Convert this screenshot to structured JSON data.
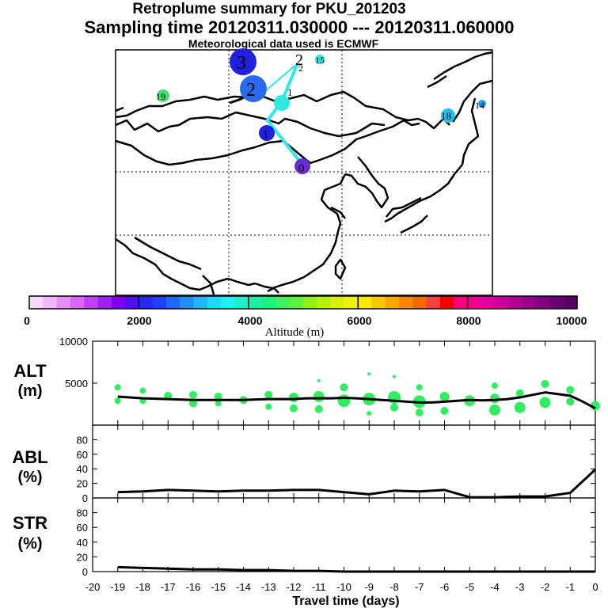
{
  "header": {
    "title": "Retroplume summary for PKU_201203",
    "sampling": "Sampling time   20120311.030000 --- 20120311.060000",
    "met": "Meteorological data used is ECMWF"
  },
  "colorbar": {
    "label": "Altitude (m)",
    "ticks": [
      "0",
      "2000",
      "4000",
      "6000",
      "8000",
      "10000"
    ],
    "colors": [
      "#f8d8f8",
      "#f0b8f8",
      "#e890f8",
      "#d868f8",
      "#c040f8",
      "#a020f0",
      "#8000f0",
      "#5010f0",
      "#2828f0",
      "#2040f8",
      "#2068f8",
      "#2090f8",
      "#20b8f8",
      "#20d8f8",
      "#20f0f0",
      "#20f0c8",
      "#20f0a0",
      "#20f080",
      "#40f060",
      "#60f040",
      "#90f020",
      "#b8f010",
      "#d8f010",
      "#f0f010",
      "#f8e800",
      "#f8c800",
      "#f8a800",
      "#f88800",
      "#f86800",
      "#f84040",
      "#f80000",
      "#f80080",
      "#f00090",
      "#e000a0",
      "#c80098",
      "#b00090",
      "#980088",
      "#800080",
      "#680070",
      "#580060"
    ]
  },
  "map": {
    "labels": [
      {
        "text": "0",
        "color": "#6a2cd0"
      },
      {
        "text": "1",
        "color": "#2020e0"
      },
      {
        "text": "1",
        "color": "#30e8e0"
      },
      {
        "text": "2",
        "color": "#2a6af0"
      },
      {
        "text": "2",
        "color": "#30e8e0"
      },
      {
        "text": "3",
        "color": "#2020e0"
      },
      {
        "text": "15",
        "color": "#30e8e0"
      },
      {
        "text": "18",
        "color": "#20c0f0"
      },
      {
        "text": "19",
        "color": "#40e070"
      },
      {
        "text": "14",
        "color": "#20a0f0"
      }
    ]
  },
  "axes": {
    "x_label": "Travel time (days)",
    "x_ticks": [
      "-20",
      "-19",
      "-18",
      "-17",
      "-16",
      "-15",
      "-14",
      "-13",
      "-12",
      "-11",
      "-10",
      "-9",
      "-8",
      "-7",
      "-6",
      "-5",
      "-4",
      "-3",
      "-2",
      "-1",
      "0"
    ]
  },
  "chart_data": [
    {
      "type": "line",
      "panel": "ALT",
      "ylabel": "ALT (m)",
      "ylim": [
        0,
        10000
      ],
      "yticks": [
        "10000",
        "5000"
      ],
      "x": [
        0,
        -0.5,
        -1,
        -1.5,
        -2,
        -2.5,
        -3,
        -3.5,
        -4,
        -4.5,
        -5,
        -5.5,
        -6,
        -6.5,
        -7,
        -7.5,
        -8,
        -8.5,
        -9,
        -9.5,
        -10,
        -10.5,
        -11,
        -11.5,
        -12,
        -12.5,
        -13,
        -13.5,
        -14,
        -15,
        -16,
        -17,
        -18,
        -19
      ],
      "series": [
        {
          "name": "mean altitude",
          "values": [
            2000,
            2800,
            3500,
            3700,
            3900,
            3600,
            3300,
            3100,
            3000,
            2950,
            3000,
            2900,
            2800,
            2700,
            2700,
            2800,
            2900,
            3000,
            3100,
            3200,
            3250,
            3200,
            3200,
            3200,
            3100,
            3100,
            3100,
            3050,
            3000,
            3000,
            3000,
            3100,
            3200,
            3400
          ]
        }
      ],
      "plume_points": [
        {
          "x": 0,
          "y": 2300,
          "r": 6
        },
        {
          "x": -1,
          "y": 2800,
          "r": 5
        },
        {
          "x": -1,
          "y": 4200,
          "r": 5
        },
        {
          "x": -2,
          "y": 2700,
          "r": 7
        },
        {
          "x": -2,
          "y": 4900,
          "r": 5
        },
        {
          "x": -3,
          "y": 2100,
          "r": 7
        },
        {
          "x": -3,
          "y": 3800,
          "r": 5
        },
        {
          "x": -4,
          "y": 1800,
          "r": 7
        },
        {
          "x": -4,
          "y": 3200,
          "r": 6
        },
        {
          "x": -4,
          "y": 4700,
          "r": 4
        },
        {
          "x": -5,
          "y": 2900,
          "r": 7
        },
        {
          "x": -6,
          "y": 1700,
          "r": 5
        },
        {
          "x": -6,
          "y": 3400,
          "r": 6
        },
        {
          "x": -7,
          "y": 2800,
          "r": 8
        },
        {
          "x": -7,
          "y": 1500,
          "r": 5
        },
        {
          "x": -7,
          "y": 4500,
          "r": 4
        },
        {
          "x": -8,
          "y": 3300,
          "r": 8
        },
        {
          "x": -8,
          "y": 2100,
          "r": 5
        },
        {
          "x": -8,
          "y": 5800,
          "r": 2
        },
        {
          "x": -9,
          "y": 3100,
          "r": 8
        },
        {
          "x": -9,
          "y": 1400,
          "r": 3
        },
        {
          "x": -9,
          "y": 6100,
          "r": 2
        },
        {
          "x": -10,
          "y": 2900,
          "r": 8
        },
        {
          "x": -10,
          "y": 4500,
          "r": 5
        },
        {
          "x": -11,
          "y": 3400,
          "r": 7
        },
        {
          "x": -11,
          "y": 1900,
          "r": 5
        },
        {
          "x": -11,
          "y": 5300,
          "r": 2
        },
        {
          "x": -12,
          "y": 3300,
          "r": 6
        },
        {
          "x": -12,
          "y": 2000,
          "r": 5
        },
        {
          "x": -13,
          "y": 3600,
          "r": 5
        },
        {
          "x": -13,
          "y": 2200,
          "r": 4
        },
        {
          "x": -14,
          "y": 3000,
          "r": 5
        },
        {
          "x": -15,
          "y": 3400,
          "r": 5
        },
        {
          "x": -15,
          "y": 2600,
          "r": 4
        },
        {
          "x": -16,
          "y": 3600,
          "r": 5
        },
        {
          "x": -16,
          "y": 2600,
          "r": 5
        },
        {
          "x": -17,
          "y": 3500,
          "r": 5
        },
        {
          "x": -18,
          "y": 4100,
          "r": 4
        },
        {
          "x": -18,
          "y": 2900,
          "r": 4
        },
        {
          "x": -19,
          "y": 4500,
          "r": 4
        },
        {
          "x": -19,
          "y": 2900,
          "r": 4
        }
      ]
    },
    {
      "type": "line",
      "panel": "ABL",
      "ylabel": "ABL (%)",
      "ylim": [
        0,
        100
      ],
      "yticks": [
        "80",
        "60",
        "40",
        "20",
        "0"
      ],
      "x": [
        0,
        -1,
        -2,
        -3,
        -4,
        -5,
        -6,
        -7,
        -8,
        -9,
        -10,
        -11,
        -12,
        -13,
        -14,
        -15,
        -16,
        -17,
        -18,
        -19
      ],
      "series": [
        {
          "name": "ABL fraction",
          "values": [
            39,
            7,
            2,
            2,
            1,
            1,
            11,
            9,
            10,
            5,
            8,
            11,
            11,
            10,
            10,
            9,
            10,
            11,
            9,
            8
          ]
        }
      ]
    },
    {
      "type": "line",
      "panel": "STR",
      "ylabel": "STR (%)",
      "ylim": [
        0,
        100
      ],
      "yticks": [
        "80",
        "60",
        "40",
        "20",
        "0"
      ],
      "x": [
        0,
        -1,
        -2,
        -3,
        -4,
        -5,
        -6,
        -7,
        -8,
        -9,
        -10,
        -11,
        -12,
        -13,
        -14,
        -15,
        -16,
        -17,
        -18,
        -19
      ],
      "series": [
        {
          "name": "stratospheric fraction",
          "values": [
            0,
            0,
            0,
            0,
            0,
            0,
            0,
            0,
            0,
            0,
            0,
            1,
            1,
            2,
            2,
            3,
            3,
            4,
            5,
            6
          ]
        }
      ]
    }
  ]
}
